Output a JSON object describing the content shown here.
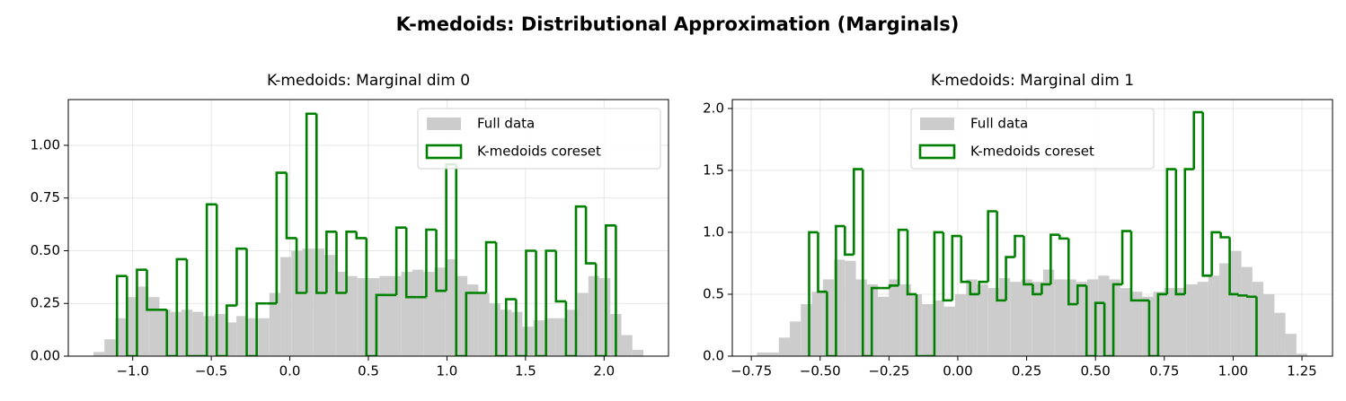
{
  "title": "K-medoids: Distributional Approximation (Marginals)",
  "chart_data": [
    {
      "type": "histogram",
      "title": "K-medoids: Marginal dim 0",
      "xlim": [
        -1.41,
        2.41
      ],
      "ylim": [
        0,
        1.217
      ],
      "xticks": [
        {
          "value": -1.0,
          "label": "−1.0"
        },
        {
          "value": -0.5,
          "label": "−0.5"
        },
        {
          "value": 0.0,
          "label": "0.0"
        },
        {
          "value": 0.5,
          "label": "0.5"
        },
        {
          "value": 1.0,
          "label": "1.0"
        },
        {
          "value": 1.5,
          "label": "1.5"
        },
        {
          "value": 2.0,
          "label": "2.0"
        }
      ],
      "yticks": [
        {
          "value": 0,
          "label": "0.00"
        },
        {
          "value": 0.25,
          "label": "0.25"
        },
        {
          "value": 0.5,
          "label": "0.50"
        },
        {
          "value": 0.75,
          "label": "0.75"
        },
        {
          "value": 1.0,
          "label": "1.00"
        }
      ],
      "grid": true,
      "legend": "upper right",
      "series": [
        {
          "name": "Full data",
          "color": "#cccccc",
          "histtype": "bar",
          "bins": [
            -1.25,
            -1.18,
            -1.11,
            -1.04,
            -0.97,
            -0.9,
            -0.83,
            -0.76,
            -0.69,
            -0.62,
            -0.55,
            -0.48,
            -0.41,
            -0.34,
            -0.27,
            -0.2,
            -0.13,
            -0.06,
            0.01,
            0.08,
            0.15,
            0.22,
            0.29,
            0.36,
            0.43,
            0.5,
            0.57,
            0.64,
            0.71,
            0.78,
            0.85,
            0.92,
            0.99,
            1.06,
            1.13,
            1.2,
            1.27,
            1.34,
            1.41,
            1.48,
            1.55,
            1.62,
            1.69,
            1.76,
            1.83,
            1.9,
            1.97,
            2.04,
            2.11,
            2.18,
            2.25
          ],
          "values": [
            0.02,
            0.08,
            0.18,
            0.28,
            0.33,
            0.28,
            0.22,
            0.21,
            0.22,
            0.21,
            0.19,
            0.2,
            0.16,
            0.19,
            0.18,
            0.18,
            0.3,
            0.47,
            0.5,
            0.51,
            0.51,
            0.48,
            0.4,
            0.38,
            0.37,
            0.37,
            0.38,
            0.38,
            0.4,
            0.41,
            0.4,
            0.42,
            0.46,
            0.38,
            0.34,
            0.3,
            0.25,
            0.22,
            0.21,
            0.14,
            0.17,
            0.18,
            0.18,
            0.22,
            0.3,
            0.38,
            0.37,
            0.2,
            0.1,
            0.03
          ]
        },
        {
          "name": "K-medoids coreset",
          "color": "#008000",
          "histtype": "step",
          "bins": [
            -1.1,
            -1.0365,
            -0.973,
            -0.9095,
            -0.846,
            -0.7825,
            -0.719,
            -0.6555,
            -0.592,
            -0.5285,
            -0.465,
            -0.4015,
            -0.338,
            -0.2745,
            -0.211,
            -0.1475,
            -0.084,
            -0.0205,
            0.043,
            0.1065,
            0.17,
            0.2335,
            0.297,
            0.3605,
            0.424,
            0.4875,
            0.551,
            0.6145,
            0.678,
            0.7415,
            0.805,
            0.8685,
            0.932,
            0.9955,
            1.059,
            1.1225,
            1.186,
            1.2495,
            1.313,
            1.3765,
            1.44,
            1.5035,
            1.567,
            1.6305,
            1.694,
            1.7575,
            1.821,
            1.8845,
            1.948,
            2.0115,
            2.075
          ],
          "values": [
            0.38,
            0,
            0.41,
            0.22,
            0.22,
            0,
            0.46,
            0,
            0,
            0.72,
            0,
            0.24,
            0.51,
            0,
            0.25,
            0.25,
            0.87,
            0.56,
            0.3,
            1.15,
            0.3,
            0.59,
            0.3,
            0.59,
            0.56,
            0,
            0.29,
            0.29,
            0.61,
            0.28,
            0.28,
            0.6,
            0.31,
            0.91,
            0,
            0.3,
            0.3,
            0.54,
            0,
            0.27,
            0,
            0.5,
            0,
            0.5,
            0.26,
            0,
            0.71,
            0.44,
            0,
            0.62
          ]
        }
      ]
    },
    {
      "type": "histogram",
      "title": "K-medoids: Marginal dim 1",
      "xlim": [
        -0.819,
        1.361
      ],
      "ylim": [
        0,
        2.072
      ],
      "xticks": [
        {
          "value": -0.75,
          "label": "−0.75"
        },
        {
          "value": -0.5,
          "label": "−0.50"
        },
        {
          "value": -0.25,
          "label": "−0.25"
        },
        {
          "value": 0.0,
          "label": "0.00"
        },
        {
          "value": 0.25,
          "label": "0.25"
        },
        {
          "value": 0.5,
          "label": "0.50"
        },
        {
          "value": 0.75,
          "label": "0.75"
        },
        {
          "value": 1.0,
          "label": "1.00"
        },
        {
          "value": 1.25,
          "label": "1.25"
        }
      ],
      "yticks": [
        {
          "value": 0,
          "label": "0.0"
        },
        {
          "value": 0.5,
          "label": "0.5"
        },
        {
          "value": 1.0,
          "label": "1.0"
        },
        {
          "value": 1.5,
          "label": "1.5"
        },
        {
          "value": 2.0,
          "label": "2.0"
        }
      ],
      "grid": true,
      "legend": "upper center",
      "series": [
        {
          "name": "Full data",
          "color": "#cccccc",
          "histtype": "bar",
          "bins": [
            -0.73,
            -0.69,
            -0.65,
            -0.61,
            -0.57,
            -0.53,
            -0.49,
            -0.45,
            -0.41,
            -0.37,
            -0.33,
            -0.29,
            -0.25,
            -0.21,
            -0.17,
            -0.13,
            -0.09,
            -0.05,
            -0.01,
            0.03,
            0.07,
            0.11,
            0.15,
            0.19,
            0.23,
            0.27,
            0.31,
            0.35,
            0.39,
            0.43,
            0.47,
            0.51,
            0.55,
            0.59,
            0.63,
            0.67,
            0.71,
            0.75,
            0.79,
            0.83,
            0.87,
            0.91,
            0.95,
            0.99,
            1.03,
            1.07,
            1.11,
            1.15,
            1.19,
            1.23,
            1.27
          ],
          "values": [
            0.03,
            0.03,
            0.15,
            0.28,
            0.42,
            0.52,
            0.62,
            0.78,
            0.77,
            0.62,
            0.58,
            0.48,
            0.62,
            0.58,
            0.5,
            0.42,
            0.45,
            0.4,
            0.5,
            0.62,
            0.58,
            0.55,
            0.63,
            0.6,
            0.62,
            0.6,
            0.7,
            0.62,
            0.62,
            0.6,
            0.62,
            0.65,
            0.62,
            0.55,
            0.52,
            0.48,
            0.52,
            0.55,
            0.55,
            0.58,
            0.6,
            0.65,
            0.75,
            0.85,
            0.72,
            0.6,
            0.5,
            0.35,
            0.18,
            0.02
          ]
        },
        {
          "name": "K-medoids coreset",
          "color": "#008000",
          "histtype": "step",
          "bins": [
            -0.54,
            -0.5075,
            -0.475,
            -0.4425,
            -0.41,
            -0.3775,
            -0.345,
            -0.3125,
            -0.28,
            -0.2475,
            -0.215,
            -0.1825,
            -0.15,
            -0.1175,
            -0.085,
            -0.0525,
            -0.02,
            0.0125,
            0.045,
            0.0775,
            0.11,
            0.1425,
            0.175,
            0.2075,
            0.24,
            0.2725,
            0.305,
            0.3375,
            0.37,
            0.4025,
            0.435,
            0.4675,
            0.5,
            0.5325,
            0.565,
            0.5975,
            0.63,
            0.6625,
            0.695,
            0.7275,
            0.76,
            0.7925,
            0.825,
            0.8575,
            0.89,
            0.9225,
            0.955,
            0.9875,
            1.02,
            1.0525,
            1.085
          ],
          "values": [
            1.0,
            0.52,
            0,
            1.05,
            0.82,
            1.51,
            0,
            0.55,
            0.55,
            0.57,
            1.02,
            0.5,
            0,
            0,
            1.0,
            0.45,
            0.97,
            0.6,
            0.5,
            0.6,
            1.17,
            0.45,
            0.8,
            0.97,
            0.58,
            0.5,
            0.58,
            0.98,
            0.95,
            0.42,
            0.57,
            0,
            0.43,
            0,
            0.58,
            1.01,
            0.45,
            0.45,
            0,
            0.5,
            1.51,
            0.5,
            1.51,
            1.97,
            0.65,
            1.0,
            0.96,
            0.5,
            0.49,
            0.48
          ]
        }
      ]
    }
  ]
}
